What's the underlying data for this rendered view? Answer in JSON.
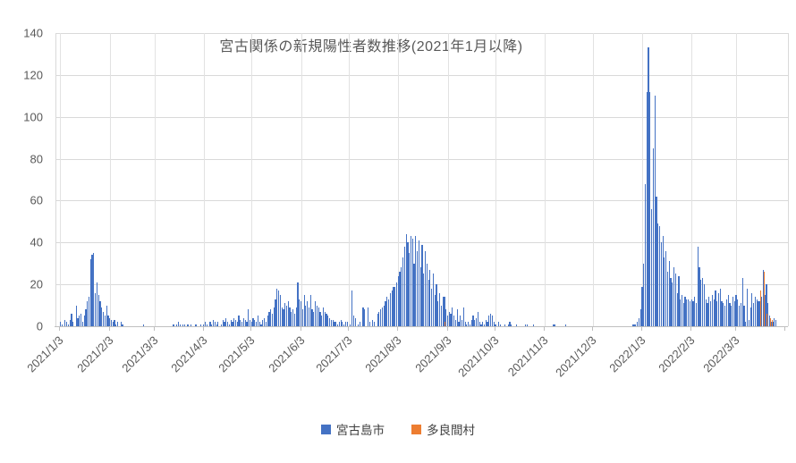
{
  "chart_data": {
    "type": "bar",
    "title": "宮古関係の新規陽性者数推移(2021年1月以降)",
    "xlabel": "",
    "ylabel": "",
    "ylim": [
      0,
      140
    ],
    "y_ticks": [
      0,
      20,
      40,
      60,
      80,
      100,
      120,
      140
    ],
    "grid": true,
    "legend_position": "bottom",
    "start_date": "2021/1/3",
    "axis_span_days": 459,
    "axis_day_offset": 2.5,
    "x_tick_labels": [
      "2021/1/3",
      "2021/2/3",
      "2021/3/3",
      "2021/4/3",
      "2021/5/3",
      "2021/6/3",
      "2021/7/3",
      "2021/8/3",
      "2021/9/3",
      "2021/10/3",
      "2021/11/3",
      "2021/12/3",
      "2022/1/3",
      "2022/2/3",
      "2022/3/3"
    ],
    "x_tick_day_indices": [
      0,
      31,
      59,
      90,
      120,
      151,
      181,
      212,
      243,
      273,
      304,
      334,
      365,
      396,
      424
    ],
    "end_axis_tick_day_index": 455,
    "series": [
      {
        "name": "宮古島市",
        "color": "#4472C4",
        "values": [
          2,
          1,
          0,
          3,
          2,
          1,
          3,
          6,
          2,
          0,
          10,
          4,
          5,
          6,
          2,
          5,
          8,
          12,
          14,
          32,
          34,
          35,
          16,
          21,
          15,
          12,
          9,
          7,
          5,
          10,
          5,
          4,
          3,
          2,
          3,
          1,
          2,
          0,
          2,
          1,
          0,
          0,
          0,
          0,
          0,
          0,
          0,
          0,
          0,
          0,
          0,
          0,
          1,
          0,
          0,
          0,
          0,
          0,
          0,
          0,
          0,
          0,
          0,
          0,
          0,
          0,
          0,
          0,
          0,
          0,
          0,
          1,
          0,
          1,
          2,
          1,
          0,
          1,
          1,
          0,
          1,
          0,
          1,
          0,
          0,
          1,
          0,
          0,
          1,
          0,
          1,
          2,
          1,
          0,
          2,
          1,
          3,
          2,
          1,
          2,
          0,
          1,
          3,
          2,
          4,
          2,
          1,
          3,
          2,
          4,
          3,
          2,
          5,
          3,
          2,
          4,
          3,
          2,
          8,
          3,
          2,
          4,
          3,
          2,
          5,
          2,
          1,
          3,
          4,
          2,
          5,
          7,
          8,
          6,
          9,
          13,
          18,
          17,
          15,
          9,
          8,
          11,
          10,
          12,
          9,
          7,
          8,
          6,
          9,
          21,
          13,
          12,
          8,
          15,
          10,
          12,
          9,
          15,
          8,
          7,
          12,
          10,
          9,
          7,
          5,
          9,
          7,
          6,
          5,
          4,
          3,
          3,
          2,
          2,
          1,
          2,
          3,
          2,
          1,
          2,
          2,
          0,
          1,
          17,
          5,
          4,
          0,
          1,
          2,
          0,
          9,
          8,
          0,
          9,
          2,
          0,
          3,
          2,
          0,
          6,
          7,
          8,
          9,
          10,
          12,
          14,
          13,
          16,
          17,
          19,
          19,
          21,
          24,
          26,
          28,
          33,
          38,
          44,
          40,
          35,
          43,
          42,
          30,
          43,
          36,
          41,
          28,
          39,
          25,
          36,
          30,
          22,
          27,
          18,
          25,
          15,
          20,
          12,
          16,
          10,
          14,
          14,
          8,
          5,
          7,
          6,
          9,
          5,
          3,
          8,
          2,
          5,
          3,
          9,
          2,
          1,
          2,
          1,
          3,
          5,
          3,
          4,
          7,
          2,
          1,
          2,
          1,
          3,
          2,
          5,
          6,
          5,
          2,
          1,
          0,
          2,
          1,
          0,
          0,
          1,
          0,
          1,
          2,
          1,
          0,
          0,
          1,
          0,
          0,
          0,
          0,
          0,
          1,
          1,
          0,
          0,
          0,
          1,
          0,
          0,
          0,
          0,
          0,
          0,
          0,
          0,
          0,
          0,
          0,
          1,
          1,
          0,
          0,
          0,
          0,
          0,
          0,
          1,
          0,
          0,
          0,
          0,
          0,
          0,
          0,
          0,
          0,
          0,
          0,
          0,
          0,
          0,
          0,
          0,
          0,
          0,
          0,
          0,
          0,
          0,
          0,
          0,
          0,
          0,
          0,
          0,
          0,
          0,
          0,
          0,
          0,
          0,
          0,
          0,
          0,
          0,
          0,
          0,
          0,
          1,
          1,
          1,
          2,
          4,
          8,
          19,
          30,
          68,
          112,
          133,
          112,
          56,
          85,
          110,
          62,
          49,
          48,
          40,
          43,
          33,
          36,
          26,
          31,
          23,
          21,
          28,
          25,
          16,
          24,
          13,
          15,
          11,
          14,
          13,
          13,
          12,
          13,
          12,
          14,
          11,
          38,
          28,
          22,
          23,
          20,
          13,
          11,
          14,
          12,
          15,
          13,
          17,
          12,
          16,
          18,
          12,
          11,
          10,
          13,
          15,
          11,
          10,
          14,
          12,
          15,
          13,
          10,
          11,
          23,
          10,
          2,
          18,
          3,
          9,
          16,
          11,
          14,
          13,
          12,
          12,
          14,
          27,
          15,
          20,
          11,
          5,
          2,
          2,
          4,
          3
        ]
      },
      {
        "name": "多良間村",
        "color": "#ED7D31",
        "points": [
          {
            "day_index": 241,
            "date": "2021/9/1",
            "value": 2
          },
          {
            "day_index": 439,
            "date": "2022/3/18",
            "value": 17
          },
          {
            "day_index": 441,
            "date": "2022/3/20",
            "value": 26
          },
          {
            "day_index": 443,
            "date": "2022/3/22",
            "value": 6
          },
          {
            "day_index": 445,
            "date": "2022/3/24",
            "value": 4
          },
          {
            "day_index": 446,
            "date": "2022/3/25",
            "value": 3
          }
        ]
      }
    ]
  },
  "legend": {
    "items": [
      {
        "label": "宮古島市",
        "color": "#4472C4"
      },
      {
        "label": "多良間村",
        "color": "#ED7D31"
      }
    ]
  },
  "colors": {
    "background": "#FFFFFF",
    "gridline": "#D9D9D9",
    "axis_line": "#BFBFBF",
    "text": "#595959",
    "series_blue": "#4472C4",
    "series_orange": "#ED7D31"
  }
}
